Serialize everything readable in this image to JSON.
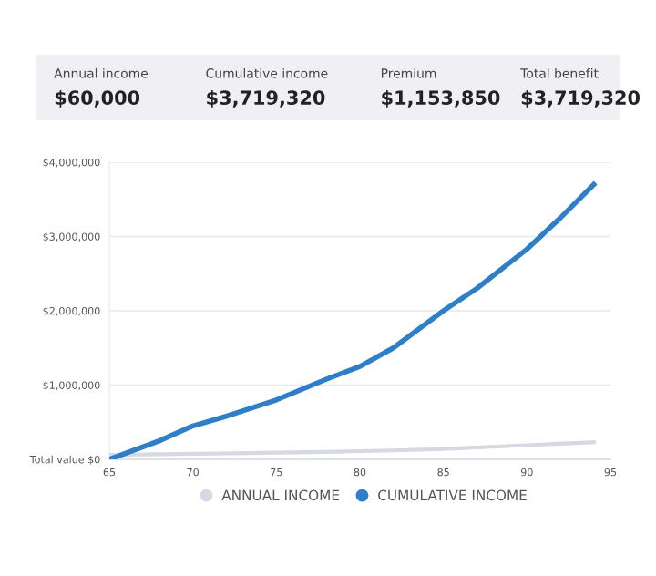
{
  "chart_data": [
    {
      "type": "other",
      "annotations": [
        "Annual income",
        "$60,000",
        "Cumulative income",
        "$3,719,320",
        "Premium",
        "$1,153,850",
        "Total benefit",
        "$3,719,320"
      ]
    },
    {
      "type": "line",
      "x": [
        65,
        68,
        70,
        72,
        75,
        78,
        80,
        82,
        85,
        87,
        90,
        92,
        94
      ],
      "series": [
        {
          "name": "ANNUAL INCOME",
          "color": "#d6d8e2",
          "values": [
            60000.0,
            70000.0,
            75000.0,
            80000.0,
            90000.0,
            100000.0,
            110000.0,
            120000.0,
            140000.0,
            160000.0,
            190000.0,
            210000.0,
            230000.0
          ]
        },
        {
          "name": "CUMULATIVE INCOME",
          "color": "#2f7fc8",
          "values": [
            0,
            250000.0,
            450000.0,
            580000.0,
            800000.0,
            1080000.0,
            1250000.0,
            1500000.0,
            2000000.0,
            2300000.0,
            2830000.0,
            3250000.0,
            3700000.0
          ]
        }
      ],
      "xlim": [
        65,
        95
      ],
      "xticks": [
        65,
        70,
        75,
        80,
        85,
        90,
        95
      ],
      "ylim": [
        0,
        4000000
      ],
      "yticks": [
        {
          "value": 0,
          "label": "Total value $0"
        },
        {
          "value": 1000000,
          "label": "$1,000,000"
        },
        {
          "value": 2000000,
          "label": "$2,000,000"
        },
        {
          "value": 3000000,
          "label": "$3,000,000"
        },
        {
          "value": 4000000,
          "label": "$4,000,000"
        }
      ],
      "grid": "y",
      "legend": "bottom"
    }
  ]
}
